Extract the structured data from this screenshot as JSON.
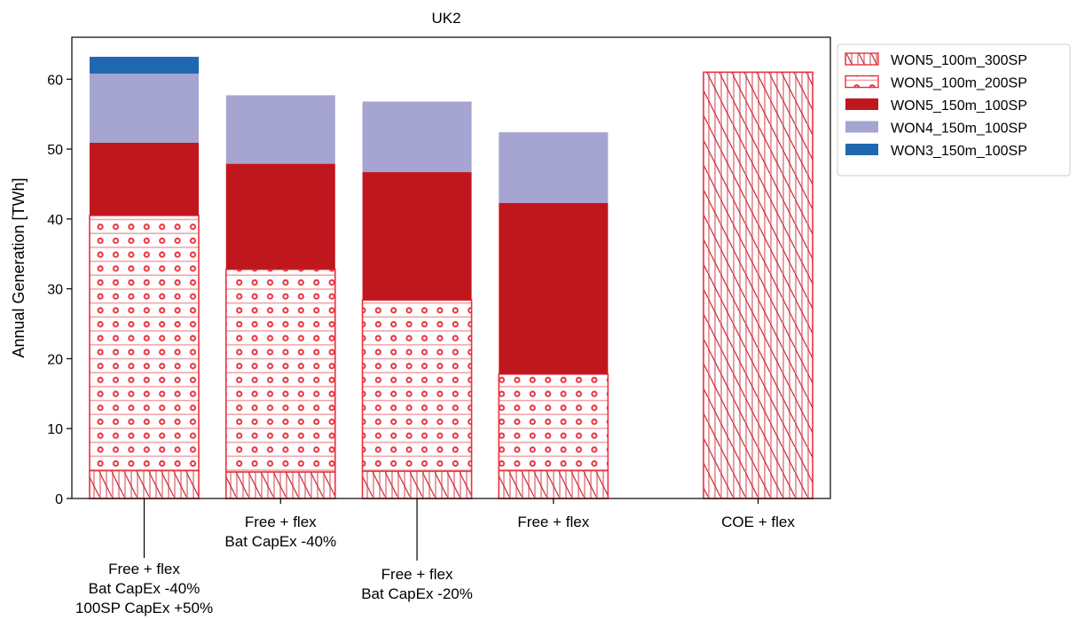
{
  "chart_data": {
    "type": "bar",
    "stacked": true,
    "title": "UK2",
    "xlabel": "",
    "ylabel": "Annual Generation [TWh]",
    "ylim": [
      0,
      66
    ],
    "yticks": [
      0,
      10,
      20,
      30,
      40,
      50,
      60
    ],
    "grid": false,
    "legend_position": "outside-right-top",
    "categories": [
      [
        "Free + flex",
        "Bat CapEx -40%",
        "100SP CapEx +50%"
      ],
      [
        "Free + flex",
        "Bat CapEx -40%"
      ],
      [
        "Free + flex",
        "Bat CapEx -20%"
      ],
      [
        "Free + flex"
      ],
      [
        "COE + flex"
      ]
    ],
    "category_x": [
      1,
      2,
      3,
      4,
      5.5
    ],
    "series": [
      {
        "name": "WON5_100m_300SP",
        "style": "hatch-diagonal",
        "color": "#e8323c",
        "values": [
          4.0,
          3.8,
          3.9,
          4.0,
          61.0
        ]
      },
      {
        "name": "WON5_100m_200SP",
        "style": "hatch-circles",
        "color": "#e8323c",
        "values": [
          36.5,
          29.0,
          24.5,
          13.8,
          0
        ]
      },
      {
        "name": "WON5_150m_100SP",
        "style": "solid",
        "color": "#c0161e",
        "values": [
          10.4,
          15.1,
          18.3,
          24.5,
          0
        ]
      },
      {
        "name": "WON4_150m_100SP",
        "style": "solid",
        "color": "#a6a4d0",
        "values": [
          9.9,
          9.8,
          10.1,
          10.1,
          0
        ]
      },
      {
        "name": "WON3_150m_100SP",
        "style": "solid",
        "color": "#1f68b0",
        "values": [
          2.4,
          0,
          0,
          0,
          0
        ]
      }
    ]
  }
}
